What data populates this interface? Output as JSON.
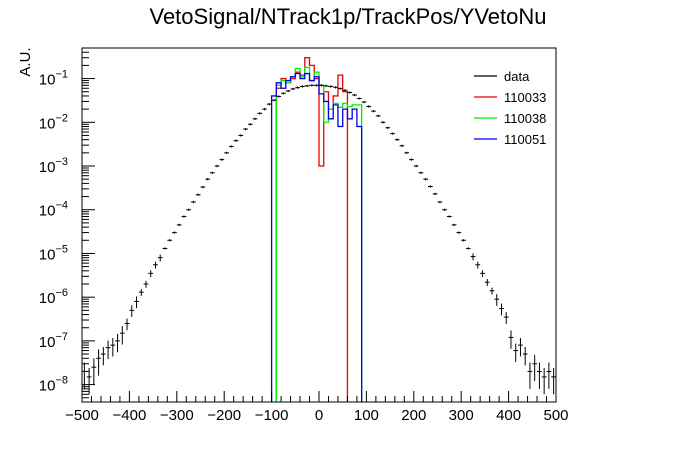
{
  "title": "VetoSignal/NTrack1p/TrackPos/YVetoNu",
  "chart_data": {
    "type": "histogram",
    "title": "VetoSignal/NTrack1p/TrackPos/YVetoNu",
    "xlabel": "",
    "ylabel": "A.U.",
    "xlim": [
      -500,
      500
    ],
    "ylim": [
      4e-09,
      0.5
    ],
    "yscale": "log",
    "grid": false,
    "legend_position": "top-right",
    "x_ticks": [
      -500,
      -400,
      -300,
      -200,
      -100,
      0,
      100,
      200,
      300,
      400,
      500
    ],
    "x_tick_labels": [
      "−500",
      "−400",
      "−300",
      "−200",
      "−100",
      "0",
      "100",
      "200",
      "300",
      "400",
      "500"
    ],
    "y_ticks": [
      1e-08,
      1e-07,
      1e-06,
      1e-05,
      0.0001,
      0.001,
      0.01,
      0.1
    ],
    "y_tick_exponents": [
      "−8",
      "−7",
      "−6",
      "−5",
      "−4",
      "−3",
      "−2",
      "−1"
    ],
    "y_tick_base": "10",
    "series": [
      {
        "name": "data",
        "style": "points",
        "color": "#000000",
        "bin_width": 10,
        "x": [
          -495,
          -485,
          -475,
          -465,
          -455,
          -445,
          -435,
          -425,
          -415,
          -405,
          -395,
          -385,
          -375,
          -365,
          -355,
          -345,
          -335,
          -325,
          -315,
          -305,
          -295,
          -285,
          -275,
          -265,
          -255,
          -245,
          -235,
          -225,
          -215,
          -205,
          -195,
          -185,
          -175,
          -165,
          -155,
          -145,
          -135,
          -125,
          -115,
          -105,
          -95,
          -85,
          -75,
          -65,
          -55,
          -45,
          -35,
          -25,
          -15,
          -5,
          5,
          15,
          25,
          35,
          45,
          55,
          65,
          75,
          85,
          95,
          105,
          115,
          125,
          135,
          145,
          155,
          165,
          175,
          185,
          195,
          205,
          215,
          225,
          235,
          245,
          255,
          265,
          275,
          285,
          295,
          305,
          315,
          325,
          335,
          345,
          355,
          365,
          375,
          385,
          395,
          405,
          415,
          425,
          435,
          445,
          455,
          465,
          475,
          485,
          495
        ],
        "y": [
          2e-08,
          1.5e-08,
          2.5e-08,
          4e-08,
          5e-08,
          7e-08,
          8e-08,
          1e-07,
          1.5e-07,
          2.5e-07,
          5e-07,
          8e-07,
          1.3e-06,
          2e-06,
          3.5e-06,
          5.5e-06,
          8e-06,
          1.3e-05,
          2e-05,
          3e-05,
          4.5e-05,
          7e-05,
          0.0001,
          0.00015,
          0.00022,
          0.00033,
          0.0005,
          0.0007,
          0.001,
          0.0014,
          0.002,
          0.0028,
          0.0038,
          0.005,
          0.007,
          0.009,
          0.012,
          0.016,
          0.02,
          0.026,
          0.032,
          0.039,
          0.046,
          0.052,
          0.058,
          0.062,
          0.066,
          0.068,
          0.07,
          0.07,
          0.07,
          0.068,
          0.066,
          0.063,
          0.059,
          0.054,
          0.048,
          0.042,
          0.035,
          0.029,
          0.023,
          0.018,
          0.014,
          0.01,
          0.0075,
          0.0055,
          0.004,
          0.0029,
          0.002,
          0.0014,
          0.001,
          0.0007,
          0.0005,
          0.00034,
          0.00023,
          0.00015,
          0.0001,
          7e-05,
          4.5e-05,
          3e-05,
          2e-05,
          1.3e-05,
          8.5e-06,
          5.5e-06,
          3.5e-06,
          2.2e-06,
          1.4e-06,
          9e-07,
          5.5e-07,
          3.5e-07,
          1.2e-07,
          6e-08,
          8e-08,
          5e-08,
          2e-08,
          3e-08,
          2e-08,
          1.5e-08,
          2e-08,
          1.5e-08
        ]
      },
      {
        "name": "110033",
        "style": "step",
        "color": "#ee0000",
        "edges": [
          -90,
          -80,
          -70,
          -60,
          -50,
          -40,
          -30,
          -20,
          -10,
          0,
          10,
          20,
          30,
          40,
          50,
          60
        ],
        "values": [
          0.06,
          0.1,
          0.08,
          0.1,
          0.14,
          0.12,
          0.3,
          0.2,
          0.1,
          0.001,
          0.05,
          0.02,
          0.04,
          0.12,
          0.05
        ]
      },
      {
        "name": "110038",
        "style": "step",
        "color": "#00ee00",
        "edges": [
          -90,
          -80,
          -70,
          -60,
          -50,
          -40,
          -30,
          -20,
          -10,
          0,
          10,
          20,
          30,
          40,
          50,
          60,
          70,
          80,
          90
        ],
        "values": [
          0.07,
          0.09,
          0.08,
          0.11,
          0.17,
          0.11,
          0.18,
          0.09,
          0.14,
          0.07,
          0.01,
          0.02,
          0.027,
          0.022,
          0.027,
          0.023,
          0.025,
          0.025
        ]
      },
      {
        "name": "110051",
        "style": "step",
        "color": "#0000ee",
        "edges": [
          -100,
          -90,
          -80,
          -70,
          -60,
          -50,
          -40,
          -30,
          -20,
          -10,
          0,
          10,
          20,
          30,
          40,
          50,
          60,
          70,
          80,
          90
        ],
        "values": [
          0.04,
          0.08,
          0.06,
          0.09,
          0.11,
          0.13,
          0.1,
          0.13,
          0.09,
          0.11,
          0.045,
          0.03,
          0.012,
          0.025,
          0.008,
          0.02,
          0.012,
          0.02,
          0.008
        ]
      }
    ]
  }
}
